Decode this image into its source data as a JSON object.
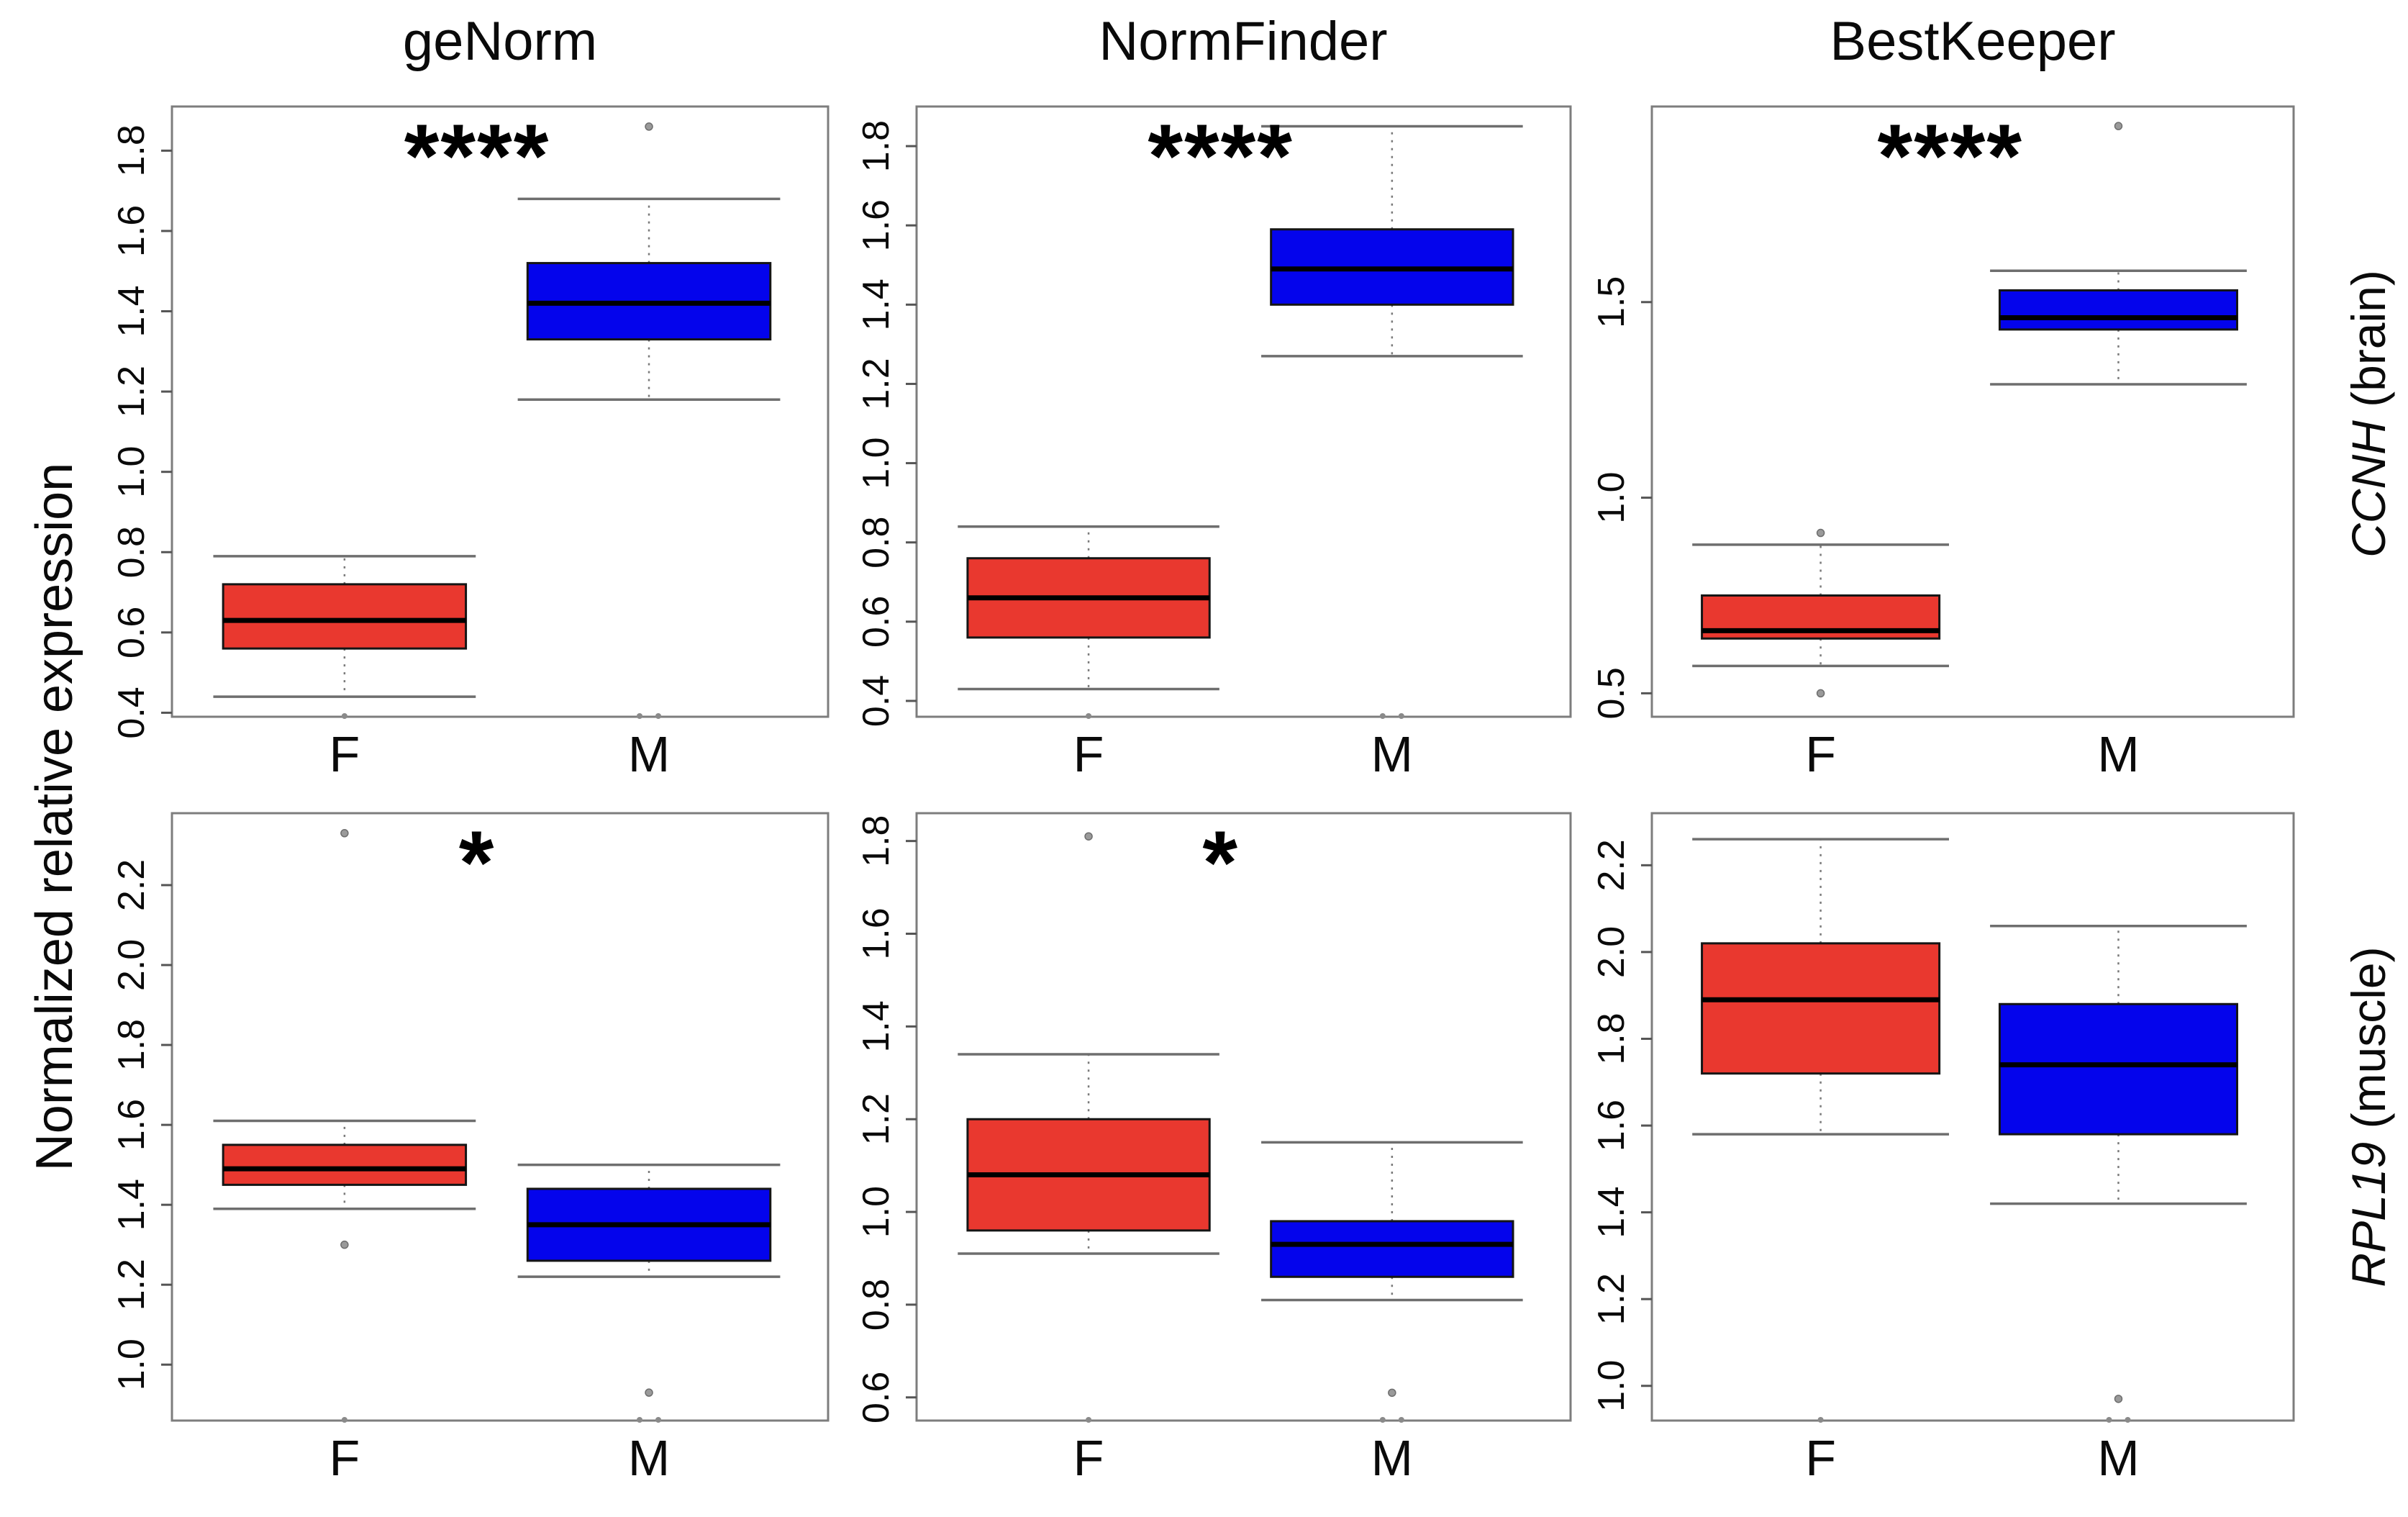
{
  "figure": {
    "ylabel": "Normalized relative expression",
    "column_titles": [
      "geNorm",
      "NormFinder",
      "BestKeeper"
    ],
    "row_labels": [
      {
        "gene": "CCNH",
        "context": " (brain)"
      },
      {
        "gene": "RPL19",
        "context": " (muscle)"
      }
    ],
    "groups": [
      {
        "label": "F",
        "color": "#E9382F"
      },
      {
        "label": "M",
        "color": "#0404EC"
      }
    ],
    "colors": {
      "female_box": "#E9382F",
      "male_box": "#0404EC",
      "median": "#000000",
      "whisker": "#7a7a7a",
      "panel_border": "#7d7d7d",
      "outlier": "#9a9a9a"
    }
  },
  "chart_data": [
    {
      "type": "box",
      "title": "geNorm",
      "row_label": "CCNH (brain)",
      "significance": "****",
      "ylim": [
        0.39,
        1.91
      ],
      "yticks": [
        0.4,
        0.6,
        0.8,
        1.0,
        1.2,
        1.4,
        1.6,
        1.8
      ],
      "boxes": [
        {
          "group": "F",
          "whisker_low": 0.44,
          "q1": 0.56,
          "median": 0.63,
          "q3": 0.72,
          "whisker_high": 0.79,
          "outliers": [],
          "edge_dots": 1
        },
        {
          "group": "M",
          "whisker_low": 1.18,
          "q1": 1.33,
          "median": 1.42,
          "q3": 1.52,
          "whisker_high": 1.68,
          "outliers": [
            1.86
          ],
          "edge_dots": 2
        }
      ]
    },
    {
      "type": "box",
      "title": "NormFinder",
      "row_label": "CCNH (brain)",
      "significance": "****",
      "ylim": [
        0.36,
        1.9
      ],
      "yticks": [
        0.4,
        0.6,
        0.8,
        1.0,
        1.2,
        1.4,
        1.6,
        1.8
      ],
      "boxes": [
        {
          "group": "F",
          "whisker_low": 0.43,
          "q1": 0.56,
          "median": 0.66,
          "q3": 0.76,
          "whisker_high": 0.84,
          "outliers": [],
          "edge_dots": 1
        },
        {
          "group": "M",
          "whisker_low": 1.27,
          "q1": 1.4,
          "median": 1.49,
          "q3": 1.59,
          "whisker_high": 1.85,
          "outliers": [],
          "edge_dots": 2
        }
      ]
    },
    {
      "type": "box",
      "title": "BestKeeper",
      "row_label": "CCNH (brain)",
      "significance": "****",
      "ylim": [
        0.44,
        2.0
      ],
      "yticks": [
        0.5,
        1.0,
        1.5
      ],
      "boxes": [
        {
          "group": "F",
          "whisker_low": 0.57,
          "q1": 0.64,
          "median": 0.66,
          "q3": 0.75,
          "whisker_high": 0.88,
          "outliers": [
            0.5,
            0.91
          ],
          "edge_dots": 0
        },
        {
          "group": "M",
          "whisker_low": 1.29,
          "q1": 1.43,
          "median": 1.46,
          "q3": 1.53,
          "whisker_high": 1.58,
          "outliers": [
            1.95
          ],
          "edge_dots": 0
        }
      ]
    },
    {
      "type": "box",
      "title": "geNorm",
      "row_label": "RPL19 (muscle)",
      "significance": "*",
      "ylim": [
        0.86,
        2.38
      ],
      "yticks": [
        1.0,
        1.2,
        1.4,
        1.6,
        1.8,
        2.0,
        2.2
      ],
      "boxes": [
        {
          "group": "F",
          "whisker_low": 1.39,
          "q1": 1.45,
          "median": 1.49,
          "q3": 1.55,
          "whisker_high": 1.61,
          "outliers": [
            1.3,
            2.33
          ],
          "edge_dots": 1
        },
        {
          "group": "M",
          "whisker_low": 1.22,
          "q1": 1.26,
          "median": 1.35,
          "q3": 1.44,
          "whisker_high": 1.5,
          "outliers": [
            0.93
          ],
          "edge_dots": 2
        }
      ]
    },
    {
      "type": "box",
      "title": "NormFinder",
      "row_label": "RPL19 (muscle)",
      "significance": "*",
      "ylim": [
        0.55,
        1.86
      ],
      "yticks": [
        0.6,
        0.8,
        1.0,
        1.2,
        1.4,
        1.6,
        1.8
      ],
      "boxes": [
        {
          "group": "F",
          "whisker_low": 0.91,
          "q1": 0.96,
          "median": 1.08,
          "q3": 1.2,
          "whisker_high": 1.34,
          "outliers": [
            1.81
          ],
          "edge_dots": 1
        },
        {
          "group": "M",
          "whisker_low": 0.81,
          "q1": 0.86,
          "median": 0.93,
          "q3": 0.98,
          "whisker_high": 1.15,
          "outliers": [
            0.61
          ],
          "edge_dots": 2
        }
      ]
    },
    {
      "type": "box",
      "title": "BestKeeper",
      "row_label": "RPL19 (muscle)",
      "significance": "",
      "ylim": [
        0.92,
        2.32
      ],
      "yticks": [
        1.0,
        1.2,
        1.4,
        1.6,
        1.8,
        2.0,
        2.2
      ],
      "boxes": [
        {
          "group": "F",
          "whisker_low": 1.58,
          "q1": 1.72,
          "median": 1.89,
          "q3": 2.02,
          "whisker_high": 2.26,
          "outliers": [],
          "edge_dots": 1
        },
        {
          "group": "M",
          "whisker_low": 1.42,
          "q1": 1.58,
          "median": 1.74,
          "q3": 1.88,
          "whisker_high": 2.06,
          "outliers": [
            0.97
          ],
          "edge_dots": 2
        }
      ]
    }
  ]
}
